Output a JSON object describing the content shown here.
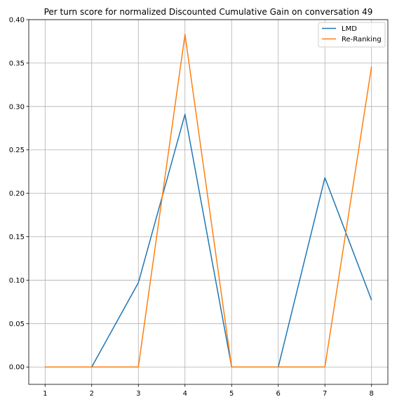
{
  "chart_data": {
    "type": "line",
    "title": "Per turn score for normalized Discounted Cumulative Gain on conversation 49",
    "xlabel": "",
    "ylabel": "",
    "x": [
      1,
      2,
      3,
      4,
      5,
      6,
      7,
      8
    ],
    "xlim": [
      0.65,
      8.35
    ],
    "ylim": [
      -0.02,
      0.4
    ],
    "x_ticks": [
      "1",
      "2",
      "3",
      "4",
      "5",
      "6",
      "7",
      "8"
    ],
    "y_ticks": [
      "0.00",
      "0.05",
      "0.10",
      "0.15",
      "0.20",
      "0.25",
      "0.30",
      "0.35",
      "0.40"
    ],
    "grid": true,
    "legend_position": "top-right",
    "series": [
      {
        "name": "LMD",
        "color": "#1f77b4",
        "values": [
          0.0,
          0.0,
          0.097,
          0.291,
          0.0,
          0.0,
          0.218,
          0.077
        ]
      },
      {
        "name": "Re-Ranking",
        "color": "#ff7f0e",
        "values": [
          0.0,
          0.0,
          0.0,
          0.383,
          0.0,
          0.0,
          0.0,
          0.346
        ]
      }
    ]
  }
}
